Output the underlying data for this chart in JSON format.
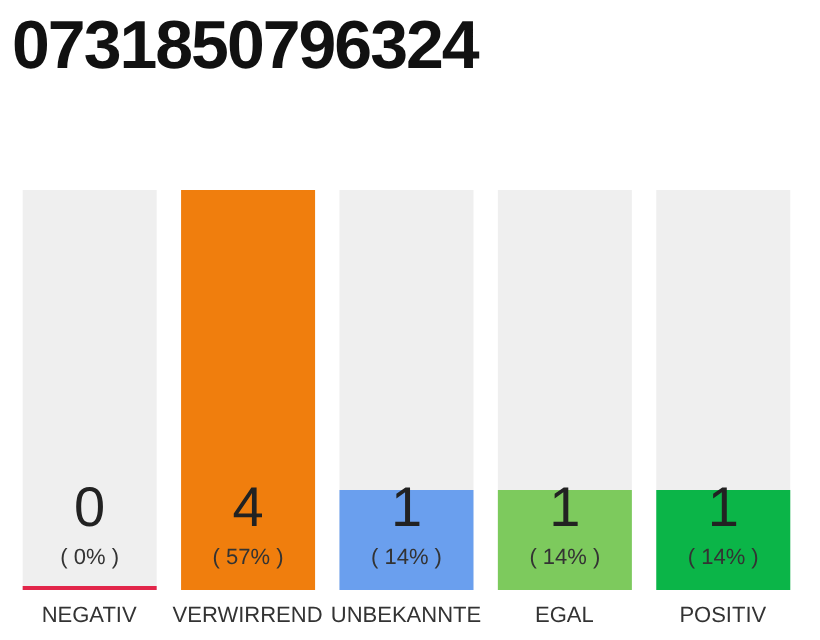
{
  "chart_data": {
    "type": "bar",
    "title": "0731850796324",
    "categories": [
      "NEGATIV",
      "VERWIRREND",
      "UNBEKANNTE",
      "EGAL",
      "POSITIV"
    ],
    "values": [
      0,
      4,
      1,
      1,
      1
    ],
    "data_labels": true,
    "tick_labels": "x",
    "colors": [
      "#e2264a",
      "#f07e0d",
      "#6a9fee",
      "#7dca5d",
      "#0bb548"
    ],
    "annotations": [
      "( 0% )",
      "( 57% )",
      "( 14% )",
      "( 14% )",
      "( 14% )"
    ],
    "legend": false,
    "grid": false
  }
}
